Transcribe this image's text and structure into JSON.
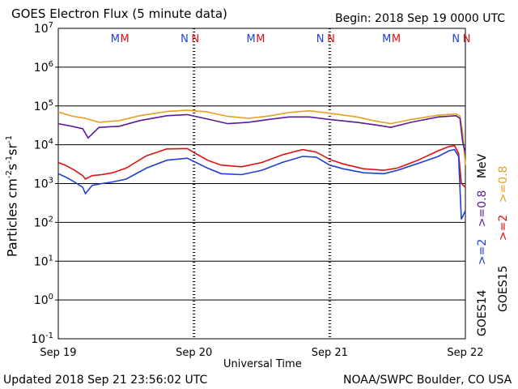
{
  "header": {
    "title": "GOES Electron Flux (5 minute data)",
    "begin": "Begin: 2018 Sep 19 0000 UTC"
  },
  "footer": {
    "updated": "Updated 2018 Sep 21 23:56:02 UTC",
    "credit": "NOAA/SWPC Boulder, CO USA"
  },
  "colors": {
    "goes14_2mev": "#1f3fd0",
    "goes15_2mev": "#e01010",
    "goes14_08mev": "#5a1a9a",
    "goes15_08mev": "#e6a020"
  },
  "chart_data": {
    "type": "line",
    "title": "GOES Electron Flux (5 minute data)",
    "xlabel": "Universal Time",
    "ylabel_base": "Particles cm",
    "ylabel_exps": [
      "-2",
      "-1",
      "-1"
    ],
    "ylabel_mid": "s",
    "ylabel_end": "sr",
    "x_ticks": [
      "Sep 19",
      "Sep 20",
      "Sep 21",
      "Sep 22"
    ],
    "xlim_days": [
      0,
      3
    ],
    "ylim_log10": [
      -1,
      7
    ],
    "y_tick_exps": [
      "7",
      "6",
      "5",
      "4",
      "3",
      "2",
      "1",
      "0",
      "-1"
    ],
    "threshold": 1000,
    "threshold_style": "dashed",
    "grid": "horizontal at each decade",
    "legend": {
      "left": [
        "GOES14",
        ">=2",
        ">=0.8"
      ],
      "right": [
        "GOES15",
        ">=2",
        ">=0.8"
      ],
      "unit": "MeV"
    },
    "markers": [
      {
        "label": "M",
        "day": 0.42,
        "color": "#1f3fd0"
      },
      {
        "label": "M",
        "day": 0.49,
        "color": "#e01010"
      },
      {
        "label": "N",
        "day": 0.93,
        "color": "#1f3fd0"
      },
      {
        "label": "N",
        "day": 1.01,
        "color": "#e01010"
      },
      {
        "label": "M",
        "day": 1.42,
        "color": "#1f3fd0"
      },
      {
        "label": "M",
        "day": 1.49,
        "color": "#e01010"
      },
      {
        "label": "N",
        "day": 1.93,
        "color": "#1f3fd0"
      },
      {
        "label": "N",
        "day": 2.01,
        "color": "#e01010"
      },
      {
        "label": "M",
        "day": 2.42,
        "color": "#1f3fd0"
      },
      {
        "label": "M",
        "day": 2.49,
        "color": "#e01010"
      },
      {
        "label": "N",
        "day": 2.93,
        "color": "#1f3fd0"
      },
      {
        "label": "N",
        "day": 3.01,
        "color": "#e01010"
      }
    ],
    "series": [
      {
        "name": "GOES15 >=0.8 MeV",
        "color": "#e6a020",
        "x": [
          0,
          0.1,
          0.2,
          0.3,
          0.45,
          0.6,
          0.8,
          0.95,
          1.1,
          1.25,
          1.4,
          1.55,
          1.7,
          1.85,
          2.0,
          2.2,
          2.35,
          2.45,
          2.6,
          2.8,
          2.93,
          2.96,
          2.98,
          3.0
        ],
        "y": [
          70000,
          55000,
          48000,
          38000,
          42000,
          56000,
          72000,
          78000,
          70000,
          54000,
          48000,
          55000,
          68000,
          75000,
          65000,
          52000,
          40000,
          35000,
          45000,
          58000,
          62000,
          55000,
          20000,
          3000
        ]
      },
      {
        "name": "GOES14 >=0.8 MeV",
        "color": "#5a1a9a",
        "x": [
          0,
          0.1,
          0.18,
          0.22,
          0.3,
          0.45,
          0.6,
          0.8,
          0.95,
          1.1,
          1.25,
          1.4,
          1.55,
          1.7,
          1.85,
          2.0,
          2.2,
          2.35,
          2.45,
          2.6,
          2.8,
          2.93,
          2.96,
          2.98,
          3.0
        ],
        "y": [
          35000,
          30000,
          26000,
          15000,
          28000,
          30000,
          42000,
          56000,
          60000,
          46000,
          35000,
          38000,
          45000,
          52000,
          52000,
          45000,
          38000,
          32000,
          28000,
          38000,
          52000,
          56000,
          48000,
          12000,
          6000
        ]
      },
      {
        "name": "GOES15 >=2 MeV",
        "color": "#e01010",
        "x": [
          0,
          0.05,
          0.12,
          0.18,
          0.2,
          0.25,
          0.32,
          0.4,
          0.5,
          0.65,
          0.8,
          0.95,
          1.1,
          1.2,
          1.35,
          1.5,
          1.65,
          1.8,
          1.9,
          2.0,
          2.1,
          2.25,
          2.4,
          2.5,
          2.65,
          2.8,
          2.88,
          2.92,
          2.95,
          2.97,
          3.0
        ],
        "y": [
          3500,
          3000,
          2200,
          1600,
          1300,
          1600,
          1700,
          1900,
          2500,
          5200,
          7800,
          8000,
          4000,
          3000,
          2700,
          3500,
          5500,
          7500,
          6500,
          4200,
          3200,
          2400,
          2200,
          2500,
          4000,
          7000,
          9000,
          9500,
          6000,
          1000,
          800
        ]
      },
      {
        "name": "GOES14 >=2 MeV",
        "color": "#1f3fd0",
        "x": [
          0,
          0.05,
          0.12,
          0.18,
          0.2,
          0.25,
          0.32,
          0.4,
          0.5,
          0.65,
          0.8,
          0.95,
          1.1,
          1.2,
          1.35,
          1.5,
          1.65,
          1.8,
          1.9,
          2.0,
          2.1,
          2.25,
          2.4,
          2.5,
          2.65,
          2.8,
          2.88,
          2.92,
          2.95,
          2.97,
          3.0
        ],
        "y": [
          1800,
          1500,
          1100,
          800,
          550,
          900,
          1000,
          1100,
          1300,
          2500,
          4000,
          4500,
          2500,
          1800,
          1700,
          2200,
          3500,
          5000,
          4800,
          3000,
          2400,
          1900,
          1800,
          2200,
          3300,
          5000,
          7000,
          7500,
          5000,
          120,
          200
        ]
      }
    ]
  }
}
